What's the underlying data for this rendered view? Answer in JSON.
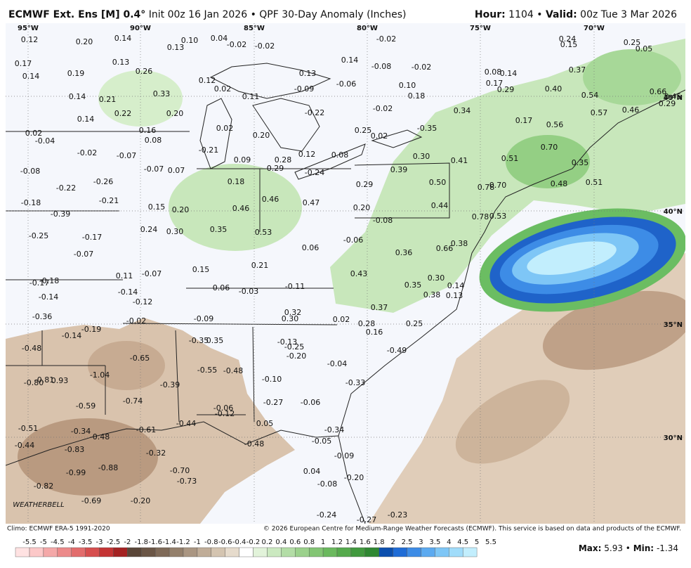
{
  "header": {
    "model": "ECMWF Ext. Ens [M] 0.4°",
    "init": "Init 00z 16 Jan 2026",
    "separator": "•",
    "product": "QPF 30-Day Anomaly (Inches)",
    "hour_label": "Hour:",
    "hour": "1104",
    "valid_label": "Valid:",
    "valid": "00z Tue 3 Mar 2026"
  },
  "grid": {
    "lon_labels": [
      "95°W",
      "90°W",
      "85°W",
      "80°W",
      "75°W",
      "70°W"
    ],
    "lat_labels": [
      "45°N",
      "40°N",
      "35°N",
      "30°N"
    ]
  },
  "points": [
    "0.12",
    "0.20",
    "0.14",
    "0.10",
    "0.04",
    "-0.02",
    "0.13",
    "-0.02",
    "0.17",
    "0.14",
    "0.19",
    "0.13",
    "0.26",
    "0.12",
    "0.02",
    "0.11",
    "-0.09",
    "0.13",
    "-0.06",
    "0.14",
    "-0.08",
    "-0.02",
    "-0.02",
    "0.10",
    "0.18",
    "0.08",
    "0.14",
    "0.17",
    "0.29",
    "0.24",
    "0.15",
    "0.25",
    "0.05",
    "0.37",
    "0.40",
    "0.54",
    "0.66",
    "0.45",
    "0.29",
    "0.57",
    "0.46",
    "0.14",
    "0.21",
    "0.33",
    "-0.02",
    "0.34",
    "-0.22",
    "0.14",
    "0.22",
    "0.20",
    "0.17",
    "0.56",
    "0.02",
    "0.20",
    "0.25",
    "-0.35",
    "0.02",
    "-0.04",
    "0.16",
    "0.08",
    "0.02",
    "-0.21",
    "0.09",
    "0.28",
    "0.12",
    "0.08",
    "0.30",
    "0.41",
    "0.51",
    "0.70",
    "0.35",
    "-0.02",
    "-0.07",
    "-0.07",
    "0.07",
    "0.29",
    "-0.24",
    "0.39",
    "-0.08",
    "0.18",
    "0.50",
    "0.78",
    "0.70",
    "0.48",
    "0.51",
    "-0.22",
    "-0.26",
    "0.29",
    "-0.21",
    "0.46",
    "0.47",
    "0.44",
    "-0.18",
    "0.15",
    "0.20",
    "0.46",
    "0.20",
    "-0.39",
    "0.78",
    "0.53",
    "-0.08",
    "0.24",
    "0.30",
    "0.35",
    "0.53",
    "-0.25",
    "-0.17",
    "-0.06",
    "0.06",
    "0.36",
    "0.66",
    "0.38",
    "-0.07",
    "0.21",
    "0.15",
    "0.11",
    "-0.07",
    "0.43",
    "0.30",
    "-0.18",
    "-0.17",
    "0.06",
    "-0.03",
    "-0.11",
    "0.35",
    "0.14",
    "-0.14",
    "-0.12",
    "-0.14",
    "0.38",
    "0.13",
    "0.37",
    "0.32",
    "0.30",
    "-0.36",
    "-0.02",
    "-0.09",
    "0.02",
    "0.28",
    "0.25",
    "0.16",
    "-0.19",
    "-0.14",
    "-0.35",
    "0.35",
    "-0.13",
    "-0.25",
    "-0.48",
    "-0.20",
    "-0.49",
    "-0.65",
    "-0.04",
    "-0.55",
    "-0.48",
    "-1.04",
    "-0.80",
    "-0.81",
    "0.93",
    "-0.10",
    "-0.39",
    "-0.33",
    "-0.59",
    "-0.74",
    "-0.27",
    "-0.06",
    "-0.06",
    "-0.12",
    "-0.44",
    "0.05",
    "-0.51",
    "-0.34",
    "-0.48",
    "-0.61",
    "-0.34",
    "-0.48",
    "-0.44",
    "-0.05",
    "-0.83",
    "-0.32",
    "-0.09",
    "-0.99",
    "-0.88",
    "-0.70",
    "-0.73",
    "0.04",
    "-0.20",
    "-0.08",
    "-0.82",
    "-0.69",
    "-0.20",
    "-0.24",
    "-0.23",
    "-0.27"
  ],
  "footer": {
    "climo": "Climo: ECMWF ERA-5 1991-2020",
    "copyright": "© 2026 European Centre for Medium-Range Weather Forecasts (ECMWF). This service is based on data and products of the ECMWF.",
    "logo": "WEATHERBELL",
    "max_label": "Max:",
    "max": "5.93",
    "min_label": "Min:",
    "min": "-1.34",
    "separator": "•"
  },
  "colorbar": {
    "ticks": [
      "-5.5",
      "-5",
      "-4.5",
      "-4",
      "-3.5",
      "-3",
      "-2.5",
      "-2",
      "-1.8",
      "-1.6",
      "-1.4",
      "-1.2",
      "-1",
      "-0.8",
      "-0.6",
      "-0.4",
      "-0.2",
      "0.2",
      "0.4",
      "0.6",
      "0.8",
      "1",
      "1.2",
      "1.4",
      "1.6",
      "1.8",
      "2",
      "2.5",
      "3",
      "3.5",
      "4",
      "4.5",
      "5",
      "5.5"
    ],
    "colors": [
      "#ffe2e2",
      "#fcc8c8",
      "#f4a8a8",
      "#ec8a8a",
      "#e26c6c",
      "#d64e4e",
      "#c43434",
      "#a42222",
      "#5a4638",
      "#6b5646",
      "#7f6a58",
      "#94806c",
      "#aa9682",
      "#c0ad98",
      "#d4c4b0",
      "#e6dbcc",
      "#ffffff",
      "#e2f3da",
      "#cbe9c0",
      "#b3dda6",
      "#9bd18c",
      "#83c574",
      "#6bb95e",
      "#55aa4c",
      "#41993e",
      "#2f8832",
      "#0c4fae",
      "#1f6cd6",
      "#3d8ce6",
      "#5caaf0",
      "#7ec6f6",
      "#a0dcfa",
      "#c2eefd"
    ]
  }
}
